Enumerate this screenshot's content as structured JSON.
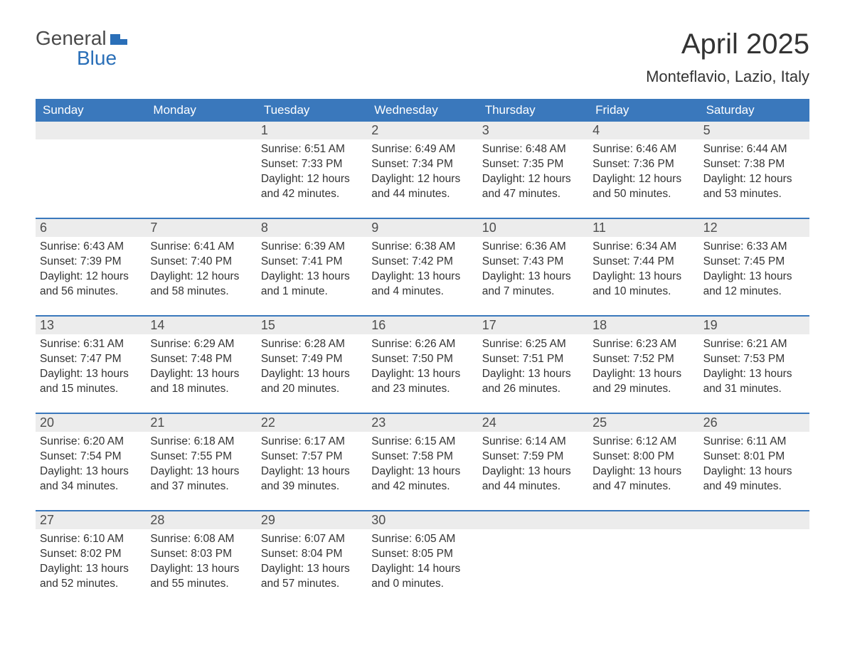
{
  "brand": {
    "word1": "General",
    "word2": "Blue"
  },
  "title": "April 2025",
  "location": "Monteflavio, Lazio, Italy",
  "colors": {
    "header_bg": "#3a78bc",
    "header_text": "#ffffff",
    "daynum_bg": "#ececec",
    "text": "#333333",
    "brand_blue": "#2a6fb8",
    "brand_gray": "#4a4a4a",
    "page_bg": "#ffffff"
  },
  "fonts": {
    "title_size_pt": 30,
    "location_size_pt": 17,
    "dow_size_pt": 13,
    "body_size_pt": 11.5
  },
  "days_of_week": [
    "Sunday",
    "Monday",
    "Tuesday",
    "Wednesday",
    "Thursday",
    "Friday",
    "Saturday"
  ],
  "weeks": [
    [
      null,
      null,
      {
        "n": "1",
        "sunrise": "6:51 AM",
        "sunset": "7:33 PM",
        "daylight": "12 hours and 42 minutes."
      },
      {
        "n": "2",
        "sunrise": "6:49 AM",
        "sunset": "7:34 PM",
        "daylight": "12 hours and 44 minutes."
      },
      {
        "n": "3",
        "sunrise": "6:48 AM",
        "sunset": "7:35 PM",
        "daylight": "12 hours and 47 minutes."
      },
      {
        "n": "4",
        "sunrise": "6:46 AM",
        "sunset": "7:36 PM",
        "daylight": "12 hours and 50 minutes."
      },
      {
        "n": "5",
        "sunrise": "6:44 AM",
        "sunset": "7:38 PM",
        "daylight": "12 hours and 53 minutes."
      }
    ],
    [
      {
        "n": "6",
        "sunrise": "6:43 AM",
        "sunset": "7:39 PM",
        "daylight": "12 hours and 56 minutes."
      },
      {
        "n": "7",
        "sunrise": "6:41 AM",
        "sunset": "7:40 PM",
        "daylight": "12 hours and 58 minutes."
      },
      {
        "n": "8",
        "sunrise": "6:39 AM",
        "sunset": "7:41 PM",
        "daylight": "13 hours and 1 minute."
      },
      {
        "n": "9",
        "sunrise": "6:38 AM",
        "sunset": "7:42 PM",
        "daylight": "13 hours and 4 minutes."
      },
      {
        "n": "10",
        "sunrise": "6:36 AM",
        "sunset": "7:43 PM",
        "daylight": "13 hours and 7 minutes."
      },
      {
        "n": "11",
        "sunrise": "6:34 AM",
        "sunset": "7:44 PM",
        "daylight": "13 hours and 10 minutes."
      },
      {
        "n": "12",
        "sunrise": "6:33 AM",
        "sunset": "7:45 PM",
        "daylight": "13 hours and 12 minutes."
      }
    ],
    [
      {
        "n": "13",
        "sunrise": "6:31 AM",
        "sunset": "7:47 PM",
        "daylight": "13 hours and 15 minutes."
      },
      {
        "n": "14",
        "sunrise": "6:29 AM",
        "sunset": "7:48 PM",
        "daylight": "13 hours and 18 minutes."
      },
      {
        "n": "15",
        "sunrise": "6:28 AM",
        "sunset": "7:49 PM",
        "daylight": "13 hours and 20 minutes."
      },
      {
        "n": "16",
        "sunrise": "6:26 AM",
        "sunset": "7:50 PM",
        "daylight": "13 hours and 23 minutes."
      },
      {
        "n": "17",
        "sunrise": "6:25 AM",
        "sunset": "7:51 PM",
        "daylight": "13 hours and 26 minutes."
      },
      {
        "n": "18",
        "sunrise": "6:23 AM",
        "sunset": "7:52 PM",
        "daylight": "13 hours and 29 minutes."
      },
      {
        "n": "19",
        "sunrise": "6:21 AM",
        "sunset": "7:53 PM",
        "daylight": "13 hours and 31 minutes."
      }
    ],
    [
      {
        "n": "20",
        "sunrise": "6:20 AM",
        "sunset": "7:54 PM",
        "daylight": "13 hours and 34 minutes."
      },
      {
        "n": "21",
        "sunrise": "6:18 AM",
        "sunset": "7:55 PM",
        "daylight": "13 hours and 37 minutes."
      },
      {
        "n": "22",
        "sunrise": "6:17 AM",
        "sunset": "7:57 PM",
        "daylight": "13 hours and 39 minutes."
      },
      {
        "n": "23",
        "sunrise": "6:15 AM",
        "sunset": "7:58 PM",
        "daylight": "13 hours and 42 minutes."
      },
      {
        "n": "24",
        "sunrise": "6:14 AM",
        "sunset": "7:59 PM",
        "daylight": "13 hours and 44 minutes."
      },
      {
        "n": "25",
        "sunrise": "6:12 AM",
        "sunset": "8:00 PM",
        "daylight": "13 hours and 47 minutes."
      },
      {
        "n": "26",
        "sunrise": "6:11 AM",
        "sunset": "8:01 PM",
        "daylight": "13 hours and 49 minutes."
      }
    ],
    [
      {
        "n": "27",
        "sunrise": "6:10 AM",
        "sunset": "8:02 PM",
        "daylight": "13 hours and 52 minutes."
      },
      {
        "n": "28",
        "sunrise": "6:08 AM",
        "sunset": "8:03 PM",
        "daylight": "13 hours and 55 minutes."
      },
      {
        "n": "29",
        "sunrise": "6:07 AM",
        "sunset": "8:04 PM",
        "daylight": "13 hours and 57 minutes."
      },
      {
        "n": "30",
        "sunrise": "6:05 AM",
        "sunset": "8:05 PM",
        "daylight": "14 hours and 0 minutes."
      },
      null,
      null,
      null
    ]
  ],
  "labels": {
    "sunrise": "Sunrise: ",
    "sunset": "Sunset: ",
    "daylight": "Daylight: "
  }
}
